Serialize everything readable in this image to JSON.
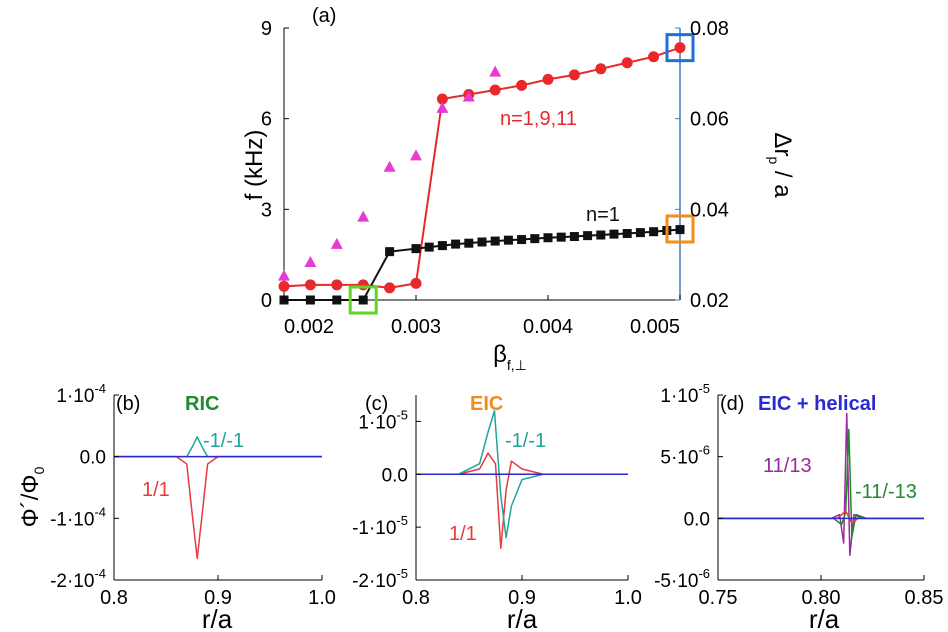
{
  "chart_data": [
    {
      "id": "a",
      "type": "scatter",
      "panel_label": "(a)",
      "xlabel": "β",
      "xlabel_sub": "f,⊥",
      "ylabel": "f (kHz)",
      "ylabel_right": "Δr",
      "ylabel_right_sub": "p",
      "ylabel_right_tail": "/ a",
      "xlim": [
        0.002,
        0.005
      ],
      "ylim": [
        0,
        9
      ],
      "ylim_right": [
        0.02,
        0.08
      ],
      "xticks": [
        "0.002",
        "0.003",
        "0.004",
        "0.005"
      ],
      "yticks": [
        "0",
        "3",
        "6",
        "9"
      ],
      "yticks_right": [
        "0.02",
        "0.04",
        "0.06",
        "0.08"
      ],
      "annotations": [
        "n=1,9,11",
        "n=1"
      ],
      "series": [
        {
          "name": "n=1,9,11",
          "axis": "left",
          "marker": "circle",
          "color": "#e8282b",
          "x": [
            0.002,
            0.0022,
            0.0024,
            0.0026,
            0.0028,
            0.003,
            0.0032,
            0.0034,
            0.0036,
            0.0038,
            0.004,
            0.0042,
            0.0044,
            0.0046,
            0.0048,
            0.005
          ],
          "values": [
            0.45,
            0.5,
            0.5,
            0.5,
            0.4,
            0.55,
            6.65,
            6.8,
            6.95,
            7.1,
            7.3,
            7.45,
            7.65,
            7.85,
            8.05,
            8.35
          ]
        },
        {
          "name": "n=1",
          "axis": "left",
          "marker": "square",
          "color": "#111111",
          "x": [
            0.002,
            0.0022,
            0.0024,
            0.0026,
            0.0028,
            0.003,
            0.0031,
            0.0032,
            0.0033,
            0.0034,
            0.0035,
            0.0036,
            0.0037,
            0.0038,
            0.0039,
            0.004,
            0.0041,
            0.0042,
            0.0043,
            0.0044,
            0.0045,
            0.0046,
            0.0047,
            0.0048,
            0.0049,
            0.005
          ],
          "values": [
            0.0,
            0.0,
            0.0,
            0.0,
            1.6,
            1.7,
            1.75,
            1.8,
            1.85,
            1.88,
            1.92,
            1.95,
            1.98,
            2.0,
            2.03,
            2.06,
            2.08,
            2.1,
            2.13,
            2.15,
            2.18,
            2.2,
            2.23,
            2.26,
            2.3,
            2.33
          ]
        },
        {
          "name": "Δr_p / a",
          "axis": "right",
          "marker": "triangle",
          "color": "#e83ad2",
          "x": [
            0.002,
            0.0022,
            0.0024,
            0.0026,
            0.0028,
            0.003,
            0.0032,
            0.0034,
            0.0036
          ],
          "values": [
            0.0255,
            0.0285,
            0.0325,
            0.0385,
            0.0495,
            0.052,
            0.0625,
            0.065,
            0.0705
          ]
        }
      ],
      "markers": [
        {
          "name": "ric-marker",
          "color": "#63d325",
          "x": 0.0026,
          "y": 0
        },
        {
          "name": "eic-marker",
          "color": "#f28c1c",
          "x": 0.005,
          "y": 2.35
        },
        {
          "name": "helical-marker",
          "color": "#1e6fe0",
          "x": 0.005,
          "y": 8.35
        }
      ]
    },
    {
      "id": "b",
      "type": "line",
      "panel_label": "(b)",
      "title": "RIC",
      "title_color": "#1f8a2e",
      "xlabel": "r/a",
      "ylabel": "Φ´/Φ",
      "ylabel_sub": "0",
      "xlim": [
        0.8,
        1.0
      ],
      "ylim": [
        -0.0002,
        0.0001
      ],
      "xticks": [
        "0.8",
        "0.9",
        "1.0"
      ],
      "yticks": [
        {
          "value": 0.0001,
          "mant": "1·10",
          "exp": "-4"
        },
        {
          "value": 0.0,
          "mant": "0.0",
          "exp": ""
        },
        {
          "value": -0.0001,
          "mant": "-1·10",
          "exp": "-4"
        },
        {
          "value": -0.0002,
          "mant": "-2·10",
          "exp": "-4"
        }
      ],
      "series": [
        {
          "name": "1/1",
          "color": "#e83a3a",
          "x": [
            0.8,
            0.86,
            0.87,
            0.875,
            0.88,
            0.885,
            0.89,
            0.9,
            1.0
          ],
          "values": [
            0.0,
            0.0,
            -1.2e-05,
            -9e-05,
            -0.000165,
            -9e-05,
            -1.2e-05,
            0.0,
            0.0
          ]
        },
        {
          "name": "-1/-1",
          "color": "#1fa59b",
          "x": [
            0.8,
            0.87,
            0.875,
            0.88,
            0.885,
            0.89,
            0.9,
            1.0
          ],
          "values": [
            0.0,
            0.0,
            1.5e-05,
            3.2e-05,
            1.5e-05,
            0.0,
            0.0,
            0.0
          ]
        },
        {
          "name": "zero",
          "color": "#2a2ad0",
          "x": [
            0.8,
            1.0
          ],
          "values": [
            0.0,
            0.0
          ]
        }
      ],
      "annotations": [
        {
          "text": "1/1",
          "color": "#e83a3a"
        },
        {
          "text": "-1/-1",
          "color": "#1fa59b"
        }
      ]
    },
    {
      "id": "c",
      "type": "line",
      "panel_label": "(c)",
      "title": "EIC",
      "title_color": "#f28c1c",
      "xlabel": "r/a",
      "xlim": [
        0.8,
        1.0
      ],
      "ylim": [
        -2e-05,
        1.5e-05
      ],
      "xticks": [
        "0.8",
        "0.9",
        "1.0"
      ],
      "yticks": [
        {
          "value": 1e-05,
          "mant": "1·10",
          "exp": "-5"
        },
        {
          "value": 0.0,
          "mant": "0.0",
          "exp": ""
        },
        {
          "value": -1e-05,
          "mant": "-1·10",
          "exp": "-5"
        },
        {
          "value": -2e-05,
          "mant": "-2·10",
          "exp": "-5"
        }
      ],
      "series": [
        {
          "name": "1/1",
          "color": "#e83a3a",
          "x": [
            0.8,
            0.84,
            0.86,
            0.868,
            0.875,
            0.88,
            0.885,
            0.89,
            0.9,
            0.92,
            1.0
          ],
          "values": [
            0.0,
            0.0,
            1e-06,
            4e-06,
            2e-06,
            -1.4e-05,
            -3e-06,
            2.5e-06,
            1e-06,
            0.0,
            0.0
          ]
        },
        {
          "name": "-1/-1",
          "color": "#1fa59b",
          "x": [
            0.8,
            0.84,
            0.86,
            0.868,
            0.874,
            0.88,
            0.885,
            0.89,
            0.9,
            0.92,
            1.0
          ],
          "values": [
            0.0,
            0.0,
            2e-06,
            8e-06,
            1.2e-05,
            -4e-06,
            -1.2e-05,
            -6e-06,
            -1e-06,
            0.0,
            0.0
          ]
        },
        {
          "name": "zero",
          "color": "#2a2ad0",
          "x": [
            0.8,
            1.0
          ],
          "values": [
            0.0,
            0.0
          ]
        }
      ],
      "annotations": [
        {
          "text": "1/1",
          "color": "#e83a3a"
        },
        {
          "text": "-1/-1",
          "color": "#1fa59b"
        }
      ]
    },
    {
      "id": "d",
      "type": "line",
      "panel_label": "(d)",
      "title": "EIC + helical",
      "title_color": "#2a2ad0",
      "xlabel": "r/a",
      "xlim": [
        0.75,
        0.85
      ],
      "ylim": [
        -5e-06,
        1e-05
      ],
      "xticks": [
        "0.75",
        "0.80",
        "0.85"
      ],
      "yticks": [
        {
          "value": 1e-05,
          "mant": "1·10",
          "exp": "-5"
        },
        {
          "value": 5e-06,
          "mant": "5·10",
          "exp": "-6"
        },
        {
          "value": 0.0,
          "mant": "0.0",
          "exp": ""
        },
        {
          "value": -5e-06,
          "mant": "-5·10",
          "exp": "-6"
        }
      ],
      "series": [
        {
          "name": "11/13",
          "color": "#9a2a9a",
          "x": [
            0.75,
            0.805,
            0.809,
            0.811,
            0.8125,
            0.814,
            0.816,
            0.82,
            0.85
          ],
          "values": [
            0.0,
            0.0,
            3e-07,
            -2e-06,
            8.5e-06,
            -3e-06,
            3e-07,
            0.0,
            0.0
          ]
        },
        {
          "name": "-11/-13",
          "color": "#1f8a2e",
          "x": [
            0.75,
            0.806,
            0.81,
            0.812,
            0.8135,
            0.815,
            0.817,
            0.822,
            0.85
          ],
          "values": [
            0.0,
            0.0,
            -5e-07,
            5e-07,
            7.2e-06,
            -1.5e-06,
            3e-07,
            0.0,
            0.0
          ]
        },
        {
          "name": "red",
          "color": "#e83a3a",
          "x": [
            0.75,
            0.808,
            0.812,
            0.815,
            0.818,
            0.85
          ],
          "values": [
            0.0,
            0.0,
            6e-07,
            -4e-07,
            0.0,
            0.0
          ]
        },
        {
          "name": "zero",
          "color": "#2a2ad0",
          "x": [
            0.75,
            0.85
          ],
          "values": [
            0.0,
            0.0
          ]
        }
      ],
      "annotations": [
        {
          "text": "11/13",
          "color": "#9a2a9a"
        },
        {
          "text": "-11/-13",
          "color": "#1f8a2e"
        }
      ]
    }
  ]
}
